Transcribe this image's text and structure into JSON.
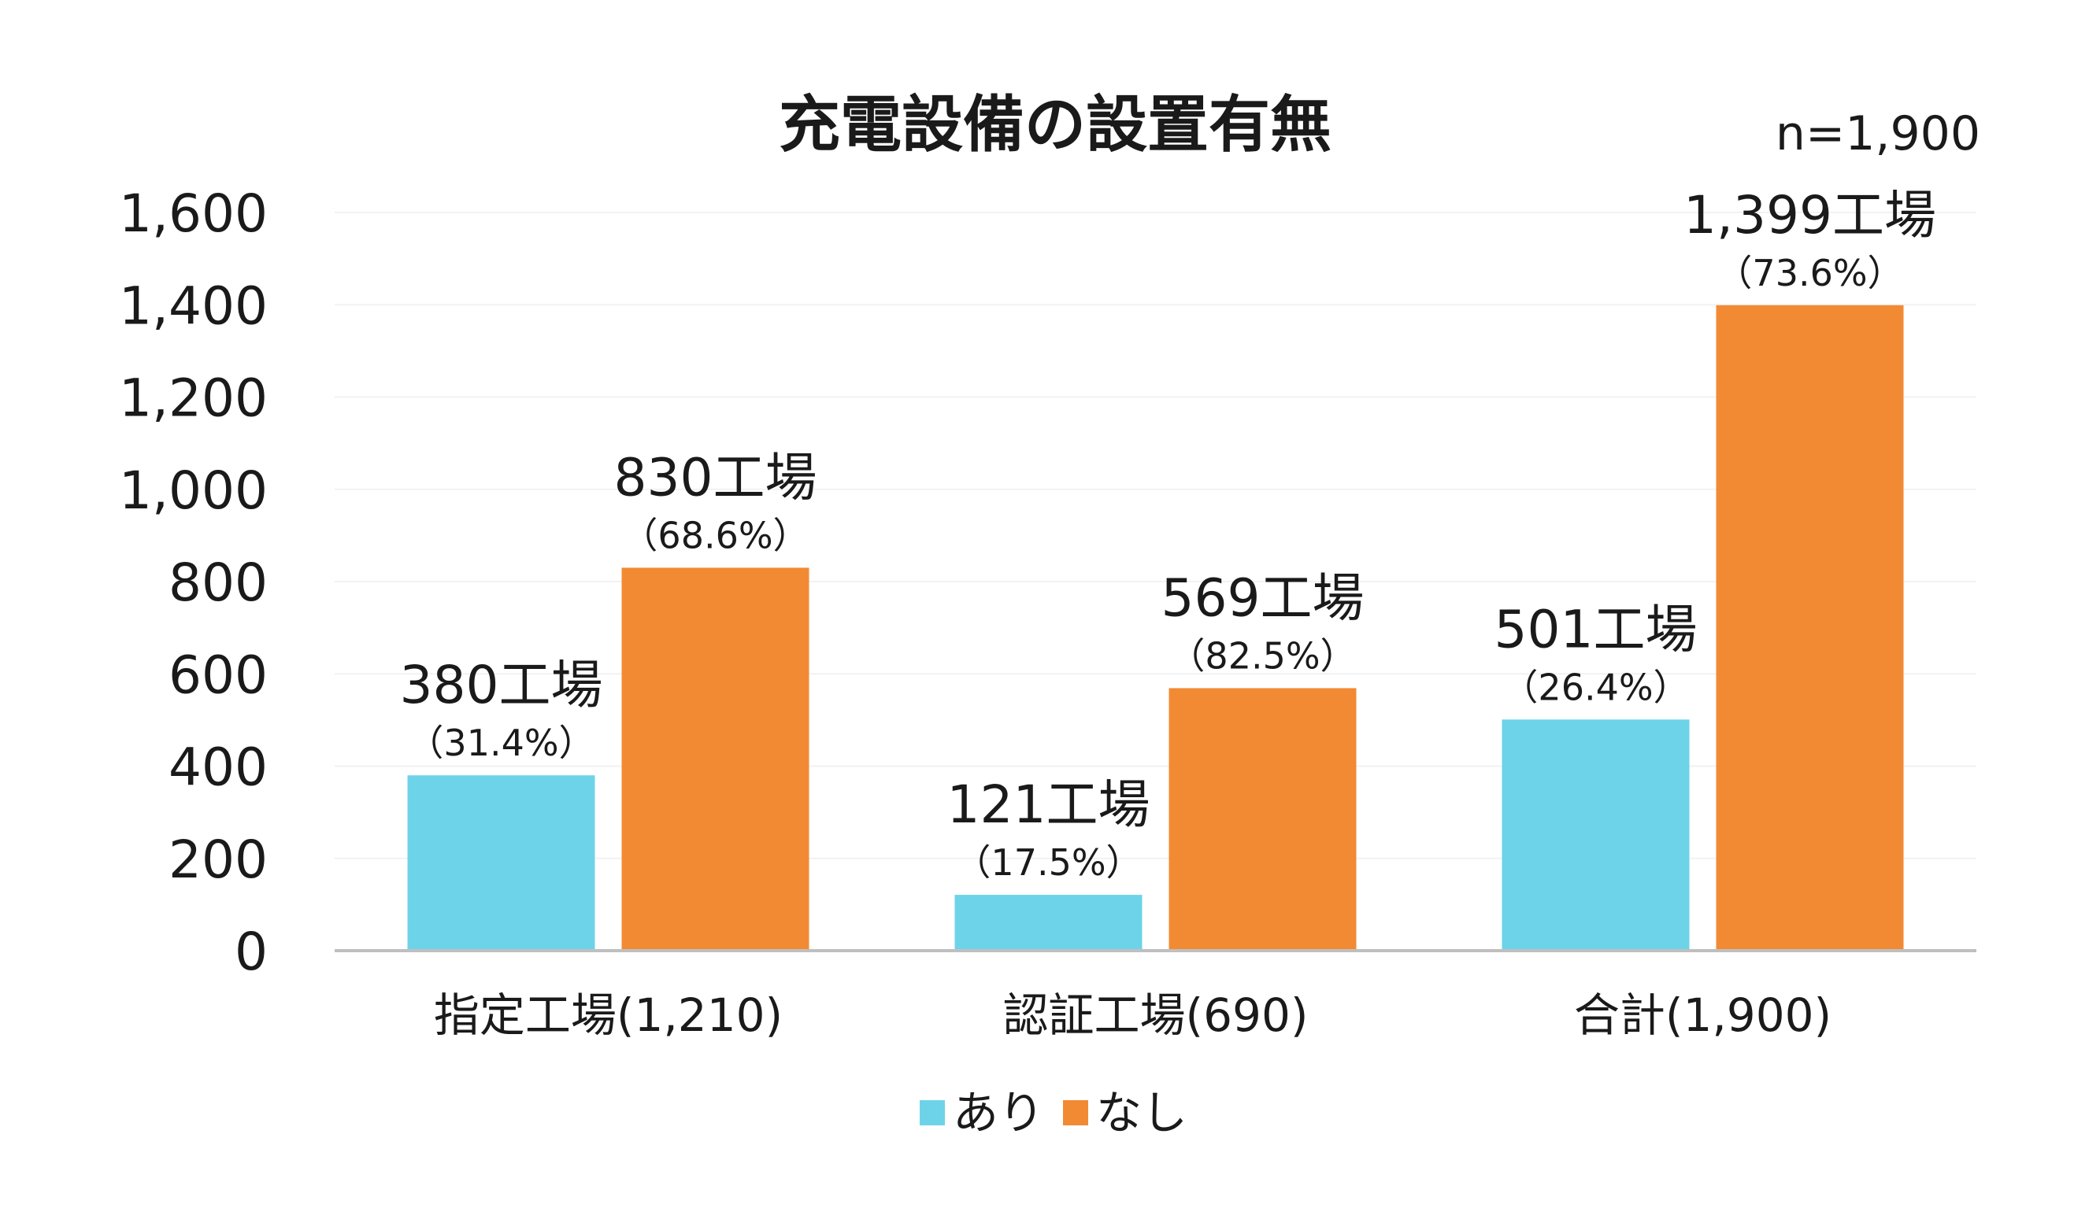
{
  "chart_data": {
    "type": "bar",
    "title": "充電設備の設置有無",
    "note": "n=1,900",
    "categories": [
      "指定工場(1,210)",
      "認証工場(690)",
      "合計(1,900)"
    ],
    "series": [
      {
        "name": "あり",
        "color": "#6dd3e8",
        "values": [
          380,
          121,
          501
        ],
        "labels": [
          "380工場",
          "121工場",
          "501工場"
        ],
        "pct_labels": [
          "（31.4%）",
          "（17.5%）",
          "（26.4%）"
        ]
      },
      {
        "name": "なし",
        "color": "#f28a33",
        "values": [
          830,
          569,
          1399
        ],
        "labels": [
          "830工場",
          "569工場",
          "1,399工場"
        ],
        "pct_labels": [
          "（68.6%）",
          "（82.5%）",
          "（73.6%）"
        ]
      }
    ],
    "yticks": [
      "0",
      "200",
      "400",
      "600",
      "800",
      "1,000",
      "1,200",
      "1,400",
      "1,600"
    ],
    "ytick_values": [
      0,
      200,
      400,
      600,
      800,
      1000,
      1200,
      1400,
      1600
    ],
    "ylim": [
      0,
      1600
    ],
    "grid": true,
    "legend_position": "bottom"
  }
}
